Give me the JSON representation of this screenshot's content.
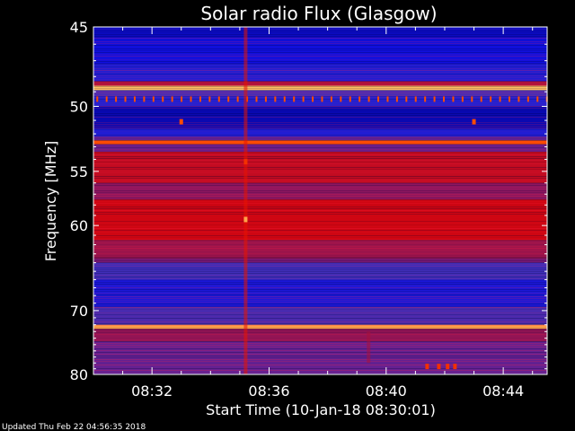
{
  "chart_data": {
    "type": "heatmap",
    "title": "Solar radio Flux (Glasgow)",
    "xlabel": "Start Time (10-Jan-18 08:30:01)",
    "ylabel": "Frequency [MHz]",
    "x_ticks": [
      "08:32",
      "08:36",
      "08:40",
      "08:44"
    ],
    "x_tick_minutes": [
      2,
      6,
      10,
      14
    ],
    "x_range_minutes": [
      0,
      15.5
    ],
    "y_ticks": [
      45,
      50,
      55,
      60,
      70,
      80
    ],
    "y_range": [
      45,
      80
    ],
    "y_scale": "reciprocal",
    "colormap": [
      "#000078",
      "#1010e0",
      "#3a30c0",
      "#7a1a7a",
      "#b01030",
      "#e00000",
      "#ff5000",
      "#ffd070"
    ],
    "bands": [
      {
        "f0": 45.0,
        "f1": 45.6,
        "level": 0.1
      },
      {
        "f0": 45.6,
        "f1": 47.2,
        "level": 0.14
      },
      {
        "f0": 47.2,
        "f1": 48.3,
        "level": 0.2
      },
      {
        "f0": 48.3,
        "f1": 48.6,
        "level": 0.55
      },
      {
        "f0": 48.6,
        "f1": 48.9,
        "level": 0.98
      },
      {
        "f0": 48.9,
        "f1": 49.3,
        "level": 0.3
      },
      {
        "f0": 49.3,
        "f1": 50.0,
        "level": 0.22
      },
      {
        "f0": 50.0,
        "f1": 51.6,
        "level": 0.08
      },
      {
        "f0": 51.6,
        "f1": 52.2,
        "level": 0.2
      },
      {
        "f0": 52.2,
        "f1": 52.5,
        "level": 0.38
      },
      {
        "f0": 52.5,
        "f1": 52.8,
        "level": 0.85
      },
      {
        "f0": 52.8,
        "f1": 53.4,
        "level": 0.4
      },
      {
        "f0": 53.4,
        "f1": 56.0,
        "level": 0.62
      },
      {
        "f0": 56.0,
        "f1": 57.5,
        "level": 0.48
      },
      {
        "f0": 57.5,
        "f1": 61.5,
        "level": 0.66
      },
      {
        "f0": 61.5,
        "f1": 63.5,
        "level": 0.52
      },
      {
        "f0": 63.5,
        "f1": 64.0,
        "level": 0.44
      },
      {
        "f0": 64.0,
        "f1": 66.0,
        "level": 0.3
      },
      {
        "f0": 66.0,
        "f1": 69.5,
        "level": 0.18
      },
      {
        "f0": 69.5,
        "f1": 72.0,
        "level": 0.32
      },
      {
        "f0": 72.0,
        "f1": 72.6,
        "level": 0.95
      },
      {
        "f0": 72.6,
        "f1": 74.5,
        "level": 0.5
      },
      {
        "f0": 74.5,
        "f1": 80.0,
        "level": 0.38
      }
    ],
    "features": [
      {
        "kind": "vline",
        "t": 5.2,
        "f0": 45.0,
        "f1": 80.0,
        "level": 0.75
      },
      {
        "kind": "spot",
        "t": 5.2,
        "f": 54.2,
        "level": 0.8
      },
      {
        "kind": "spot",
        "t": 5.2,
        "f": 59.4,
        "level": 0.95
      },
      {
        "kind": "vline",
        "t": 9.4,
        "f0": 73.0,
        "f1": 78.0,
        "level": 0.55
      },
      {
        "kind": "spot",
        "t": 3.0,
        "f": 51.1,
        "level": 0.85
      },
      {
        "kind": "spot",
        "t": 13.0,
        "f": 51.1,
        "level": 0.85
      },
      {
        "kind": "spot",
        "t": 11.4,
        "f": 78.6,
        "level": 0.8
      },
      {
        "kind": "spot",
        "t": 11.8,
        "f": 78.6,
        "level": 0.8
      },
      {
        "kind": "spot",
        "t": 12.1,
        "f": 78.6,
        "level": 0.8
      },
      {
        "kind": "spot",
        "t": 12.35,
        "f": 78.6,
        "level": 0.8
      }
    ],
    "dashed_line": {
      "f": 49.5,
      "level": 0.85,
      "step_minutes": 0.32
    },
    "footer": "Updated Thu Feb 22 04:56:35 2018"
  }
}
